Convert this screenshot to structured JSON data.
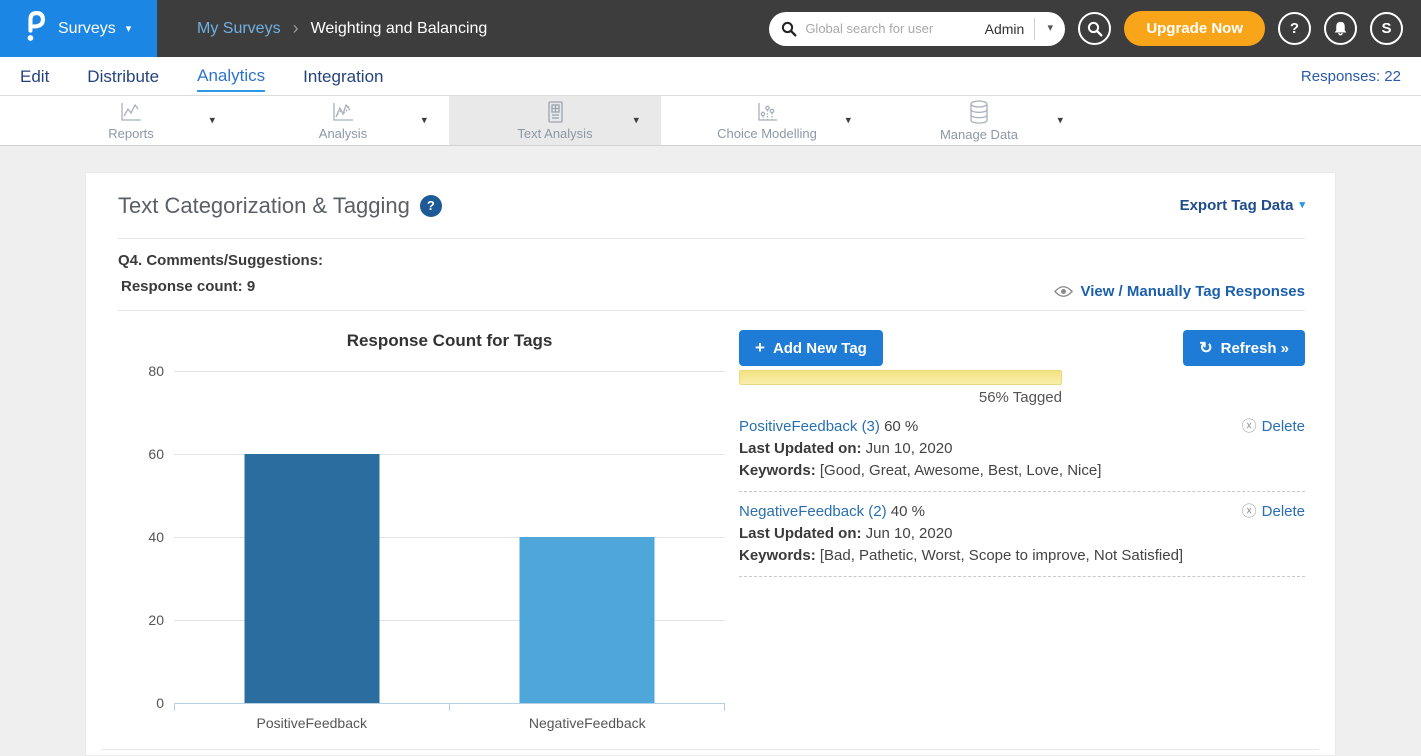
{
  "glyphs": {
    "caret_down": "▾",
    "breadcrumb_separator": "›",
    "plus": "+",
    "refresh": "↻",
    "delete_circle": "ⓧ"
  },
  "colors": {
    "brand_blue": "#1b86e3",
    "header_dark": "#3d3d3d",
    "accent_orange": "#f9a51a",
    "button_blue": "#1e7cd7",
    "active_tab_bg": "#e9e9e9",
    "progress_yellow": "#f2e183",
    "bar_positive": "#2a6d9e",
    "bar_negative": "#4fa6d8"
  },
  "header": {
    "product_label": "Surveys",
    "breadcrumb": {
      "parent": "My Surveys",
      "current": "Weighting and Balancing"
    },
    "search_placeholder": "Global search for user",
    "search_scope": "Admin",
    "upgrade_label": "Upgrade Now",
    "help_glyph": "?",
    "avatar_initial": "S"
  },
  "nav": {
    "items": [
      {
        "label": "Edit"
      },
      {
        "label": "Distribute"
      },
      {
        "label": "Analytics"
      },
      {
        "label": "Integration"
      }
    ],
    "responses": "Responses: 22"
  },
  "tabs": [
    {
      "label": "Reports",
      "icon": "line-chart-icon"
    },
    {
      "label": "Analysis",
      "icon": "trend-chart-icon"
    },
    {
      "label": "Text Analysis",
      "icon": "document-grid-icon"
    },
    {
      "label": "Choice Modelling",
      "icon": "scatter-chart-icon"
    },
    {
      "label": "Manage Data",
      "icon": "database-icon"
    }
  ],
  "panel": {
    "title": "Text Categorization & Tagging",
    "help_glyph": "?",
    "export_label": "Export Tag Data",
    "question_label": "Q4. Comments/Suggestions:",
    "response_count": "Response count: 9",
    "view_link": "View / Manually Tag Responses",
    "add_tag_label": "Add New Tag",
    "refresh_label": "Refresh »",
    "tagged_label": "56% Tagged",
    "tags": [
      {
        "name": "PositiveFeedback (3)",
        "percent": "60 %",
        "updated_label": "Last Updated on:",
        "updated_value": "Jun 10, 2020",
        "keywords_label": "Keywords:",
        "keywords_value": "[Good, Great, Awesome, Best, Love, Nice]",
        "delete_label": "Delete"
      },
      {
        "name": "NegativeFeedback (2)",
        "percent": "40 %",
        "updated_label": "Last Updated on:",
        "updated_value": "Jun 10, 2020",
        "keywords_label": "Keywords:",
        "keywords_value": "[Bad, Pathetic, Worst, Scope to improve, Not Satisfied]",
        "delete_label": "Delete"
      }
    ]
  },
  "chart_data": {
    "type": "bar",
    "title": "Response Count for Tags",
    "categories": [
      "PositiveFeedback",
      "NegativeFeedback"
    ],
    "values": [
      60,
      40
    ],
    "xlabel": "",
    "ylabel": "",
    "ylim": [
      0,
      80
    ],
    "yticks": [
      0,
      20,
      40,
      60,
      80
    ],
    "bar_colors": [
      "#2a6d9e",
      "#4fa6d8"
    ],
    "grid": true,
    "legend": false
  }
}
